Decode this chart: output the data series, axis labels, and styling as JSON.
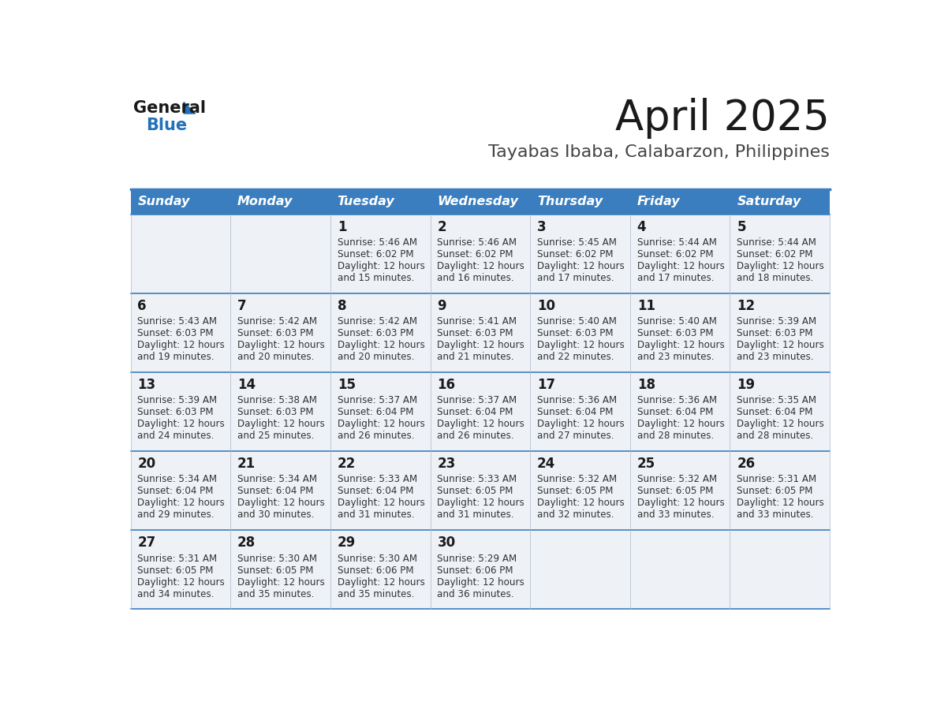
{
  "title": "April 2025",
  "subtitle": "Tayabas Ibaba, Calabarzon, Philippines",
  "days_of_week": [
    "Sunday",
    "Monday",
    "Tuesday",
    "Wednesday",
    "Thursday",
    "Friday",
    "Saturday"
  ],
  "header_bg": "#3a7ebf",
  "header_text": "#ffffff",
  "cell_bg": "#eef2f7",
  "separator_color": "#3a7ebf",
  "title_color": "#1a1a1a",
  "subtitle_color": "#444444",
  "day_num_color": "#1a1a1a",
  "cell_text_color": "#333333",
  "logo_general_color": "#1a1a1a",
  "logo_blue_color": "#2272b9",
  "logo_triangle_color": "#2272b9",
  "weeks": [
    [
      {
        "day": null,
        "sunrise": null,
        "sunset": null,
        "daylight_min": null
      },
      {
        "day": null,
        "sunrise": null,
        "sunset": null,
        "daylight_min": null
      },
      {
        "day": 1,
        "sunrise": "5:46 AM",
        "sunset": "6:02 PM",
        "daylight_min": 15
      },
      {
        "day": 2,
        "sunrise": "5:46 AM",
        "sunset": "6:02 PM",
        "daylight_min": 16
      },
      {
        "day": 3,
        "sunrise": "5:45 AM",
        "sunset": "6:02 PM",
        "daylight_min": 17
      },
      {
        "day": 4,
        "sunrise": "5:44 AM",
        "sunset": "6:02 PM",
        "daylight_min": 17
      },
      {
        "day": 5,
        "sunrise": "5:44 AM",
        "sunset": "6:02 PM",
        "daylight_min": 18
      }
    ],
    [
      {
        "day": 6,
        "sunrise": "5:43 AM",
        "sunset": "6:03 PM",
        "daylight_min": 19
      },
      {
        "day": 7,
        "sunrise": "5:42 AM",
        "sunset": "6:03 PM",
        "daylight_min": 20
      },
      {
        "day": 8,
        "sunrise": "5:42 AM",
        "sunset": "6:03 PM",
        "daylight_min": 20
      },
      {
        "day": 9,
        "sunrise": "5:41 AM",
        "sunset": "6:03 PM",
        "daylight_min": 21
      },
      {
        "day": 10,
        "sunrise": "5:40 AM",
        "sunset": "6:03 PM",
        "daylight_min": 22
      },
      {
        "day": 11,
        "sunrise": "5:40 AM",
        "sunset": "6:03 PM",
        "daylight_min": 23
      },
      {
        "day": 12,
        "sunrise": "5:39 AM",
        "sunset": "6:03 PM",
        "daylight_min": 23
      }
    ],
    [
      {
        "day": 13,
        "sunrise": "5:39 AM",
        "sunset": "6:03 PM",
        "daylight_min": 24
      },
      {
        "day": 14,
        "sunrise": "5:38 AM",
        "sunset": "6:03 PM",
        "daylight_min": 25
      },
      {
        "day": 15,
        "sunrise": "5:37 AM",
        "sunset": "6:04 PM",
        "daylight_min": 26
      },
      {
        "day": 16,
        "sunrise": "5:37 AM",
        "sunset": "6:04 PM",
        "daylight_min": 26
      },
      {
        "day": 17,
        "sunrise": "5:36 AM",
        "sunset": "6:04 PM",
        "daylight_min": 27
      },
      {
        "day": 18,
        "sunrise": "5:36 AM",
        "sunset": "6:04 PM",
        "daylight_min": 28
      },
      {
        "day": 19,
        "sunrise": "5:35 AM",
        "sunset": "6:04 PM",
        "daylight_min": 28
      }
    ],
    [
      {
        "day": 20,
        "sunrise": "5:34 AM",
        "sunset": "6:04 PM",
        "daylight_min": 29
      },
      {
        "day": 21,
        "sunrise": "5:34 AM",
        "sunset": "6:04 PM",
        "daylight_min": 30
      },
      {
        "day": 22,
        "sunrise": "5:33 AM",
        "sunset": "6:04 PM",
        "daylight_min": 31
      },
      {
        "day": 23,
        "sunrise": "5:33 AM",
        "sunset": "6:05 PM",
        "daylight_min": 31
      },
      {
        "day": 24,
        "sunrise": "5:32 AM",
        "sunset": "6:05 PM",
        "daylight_min": 32
      },
      {
        "day": 25,
        "sunrise": "5:32 AM",
        "sunset": "6:05 PM",
        "daylight_min": 33
      },
      {
        "day": 26,
        "sunrise": "5:31 AM",
        "sunset": "6:05 PM",
        "daylight_min": 33
      }
    ],
    [
      {
        "day": 27,
        "sunrise": "5:31 AM",
        "sunset": "6:05 PM",
        "daylight_min": 34
      },
      {
        "day": 28,
        "sunrise": "5:30 AM",
        "sunset": "6:05 PM",
        "daylight_min": 35
      },
      {
        "day": 29,
        "sunrise": "5:30 AM",
        "sunset": "6:06 PM",
        "daylight_min": 35
      },
      {
        "day": 30,
        "sunrise": "5:29 AM",
        "sunset": "6:06 PM",
        "daylight_min": 36
      },
      {
        "day": null,
        "sunrise": null,
        "sunset": null,
        "daylight_min": null
      },
      {
        "day": null,
        "sunrise": null,
        "sunset": null,
        "daylight_min": null
      },
      {
        "day": null,
        "sunrise": null,
        "sunset": null,
        "daylight_min": null
      }
    ]
  ]
}
